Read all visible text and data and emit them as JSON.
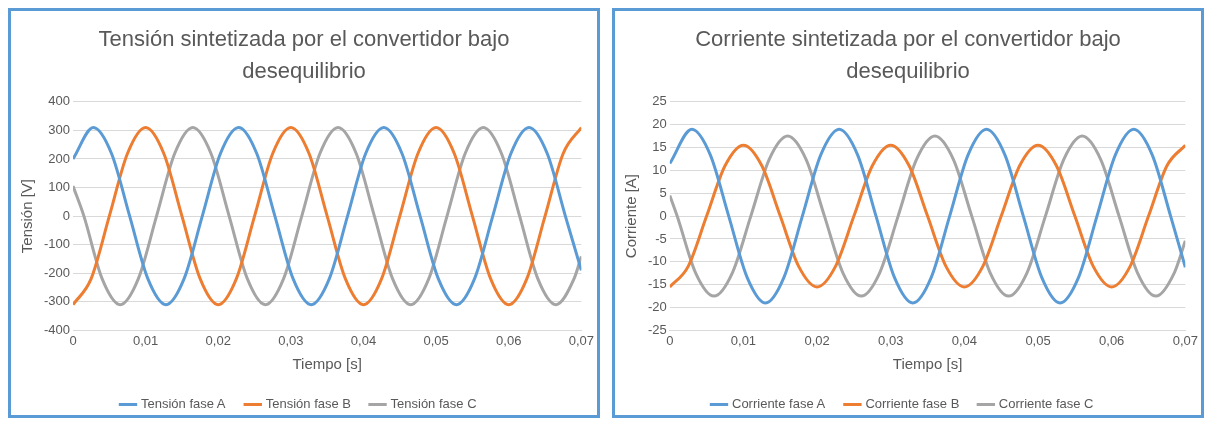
{
  "chart_data": [
    {
      "type": "line",
      "title": "Tensión sintetizada por el convertidor bajo desequilibrio",
      "xlabel": "Tiempo [s]",
      "ylabel": "Tensión [V]",
      "xlim": [
        0,
        0.07
      ],
      "xticks": [
        0,
        {
          "value": 0.01,
          "label": "0,01"
        },
        {
          "value": 0.02,
          "label": "0,02"
        },
        {
          "value": 0.03,
          "label": "0,03"
        },
        {
          "value": 0.04,
          "label": "0,04"
        },
        {
          "value": 0.05,
          "label": "0,05"
        },
        {
          "value": 0.06,
          "label": "0,06"
        },
        {
          "value": 0.07,
          "label": "0,07"
        }
      ],
      "ylim": [
        -400,
        400
      ],
      "yticks": [
        -400,
        -300,
        -200,
        -100,
        0,
        100,
        200,
        300,
        400
      ],
      "grid": "y",
      "legend": "bottom",
      "marker": "none",
      "line_style": "solid",
      "series": [
        {
          "name": "Tensión fase A",
          "color": "#5b9bd5",
          "x": [
            0,
            0.0028,
            0.0053,
            0.0078,
            0.0103,
            0.0128,
            0.0153,
            0.0178,
            0.0203,
            0.0228,
            0.0253,
            0.0278,
            0.0303,
            0.0328,
            0.0353,
            0.0378,
            0.0403,
            0.0428,
            0.0453,
            0.0478,
            0.0503,
            0.0528,
            0.0553,
            0.0578,
            0.0603,
            0.0628,
            0.0653,
            0.0678,
            0.07
          ],
          "values": [
            200,
            310,
            219,
            0,
            -219,
            -310,
            -219,
            0,
            219,
            310,
            219,
            0,
            -219,
            -310,
            -219,
            0,
            219,
            310,
            219,
            0,
            -219,
            -310,
            -219,
            0,
            219,
            310,
            219,
            0,
            -190
          ]
        },
        {
          "name": "Tensión fase B",
          "color": "#ed7d31",
          "x": [
            0,
            0.0025,
            0.005,
            0.0075,
            0.01,
            0.0125,
            0.015,
            0.0175,
            0.02,
            0.0225,
            0.025,
            0.0275,
            0.03,
            0.0325,
            0.035,
            0.0375,
            0.04,
            0.0425,
            0.045,
            0.0475,
            0.05,
            0.0525,
            0.055,
            0.0575,
            0.06,
            0.0625,
            0.065,
            0.0675,
            0.07
          ],
          "values": [
            -310,
            -219,
            0,
            219,
            310,
            219,
            0,
            -219,
            -310,
            -219,
            0,
            219,
            310,
            219,
            0,
            -219,
            -310,
            -219,
            0,
            219,
            310,
            219,
            0,
            -219,
            -310,
            -219,
            0,
            219,
            310
          ]
        },
        {
          "name": "Tensión fase C",
          "color": "#a5a5a5",
          "x": [
            0,
            0.0015,
            0.004,
            0.0065,
            0.009,
            0.0115,
            0.014,
            0.0165,
            0.019,
            0.0215,
            0.024,
            0.0265,
            0.029,
            0.0315,
            0.034,
            0.0365,
            0.039,
            0.0415,
            0.044,
            0.0465,
            0.049,
            0.0515,
            0.054,
            0.0565,
            0.059,
            0.0615,
            0.064,
            0.0665,
            0.069,
            0.07
          ],
          "values": [
            105,
            0,
            -219,
            -310,
            -219,
            0,
            219,
            310,
            219,
            0,
            -219,
            -310,
            -219,
            0,
            219,
            310,
            219,
            0,
            -219,
            -310,
            -219,
            0,
            219,
            310,
            219,
            0,
            -219,
            -310,
            -219,
            -141
          ]
        }
      ]
    },
    {
      "type": "line",
      "title": "Corriente sintetizada por el convertidor bajo desequilibrio",
      "xlabel": "Tiempo [s]",
      "ylabel": "Corriente [A]",
      "xlim": [
        0,
        0.07
      ],
      "xticks": [
        0,
        {
          "value": 0.01,
          "label": "0,01"
        },
        {
          "value": 0.02,
          "label": "0,02"
        },
        {
          "value": 0.03,
          "label": "0,03"
        },
        {
          "value": 0.04,
          "label": "0,04"
        },
        {
          "value": 0.05,
          "label": "0,05"
        },
        {
          "value": 0.06,
          "label": "0,06"
        },
        {
          "value": 0.07,
          "label": "0,07"
        }
      ],
      "ylim": [
        -25,
        25
      ],
      "yticks": [
        -25,
        -20,
        -15,
        -10,
        -5,
        0,
        5,
        10,
        15,
        20,
        25
      ],
      "grid": "y",
      "legend": "bottom",
      "marker": "none",
      "line_style": "solid",
      "series": [
        {
          "name": "Corriente fase A",
          "color": "#5b9bd5",
          "x": [
            0,
            0.003,
            0.0055,
            0.008,
            0.0105,
            0.013,
            0.0155,
            0.018,
            0.0205,
            0.023,
            0.0255,
            0.028,
            0.0305,
            0.033,
            0.0355,
            0.038,
            0.0405,
            0.043,
            0.0455,
            0.048,
            0.0505,
            0.053,
            0.0555,
            0.058,
            0.0605,
            0.063,
            0.0655,
            0.068,
            0.07
          ],
          "values": [
            11.5,
            19,
            13.4,
            0,
            -13.4,
            -19,
            -13.4,
            0,
            13.4,
            19,
            13.4,
            0,
            -13.4,
            -19,
            -13.4,
            0,
            13.4,
            19,
            13.4,
            0,
            -13.4,
            -19,
            -13.4,
            0,
            13.4,
            19,
            13.4,
            0,
            -11.2
          ]
        },
        {
          "name": "Corriente fase B",
          "color": "#ed7d31",
          "x": [
            0,
            0.0025,
            0.005,
            0.0075,
            0.01,
            0.0125,
            0.015,
            0.0175,
            0.02,
            0.0225,
            0.025,
            0.0275,
            0.03,
            0.0325,
            0.035,
            0.0375,
            0.04,
            0.0425,
            0.045,
            0.0475,
            0.05,
            0.0525,
            0.055,
            0.0575,
            0.06,
            0.0625,
            0.065,
            0.0675,
            0.07
          ],
          "values": [
            -15.5,
            -11,
            0,
            11,
            15.5,
            11,
            0,
            -11,
            -15.5,
            -11,
            0,
            11,
            15.5,
            11,
            0,
            -11,
            -15.5,
            -11,
            0,
            11,
            15.5,
            11,
            0,
            -11,
            -15.5,
            -11,
            0,
            11,
            15.5
          ]
        },
        {
          "name": "Corriente fase C",
          "color": "#a5a5a5",
          "x": [
            0,
            0.001,
            0.0035,
            0.006,
            0.0085,
            0.011,
            0.0135,
            0.016,
            0.0185,
            0.021,
            0.0235,
            0.026,
            0.0285,
            0.031,
            0.0335,
            0.036,
            0.0385,
            0.041,
            0.0435,
            0.046,
            0.0485,
            0.051,
            0.0535,
            0.056,
            0.0585,
            0.061,
            0.0635,
            0.066,
            0.0685,
            0.07
          ],
          "values": [
            4.5,
            0,
            -12.4,
            -17.5,
            -12.4,
            0,
            12.4,
            17.5,
            12.4,
            0,
            -12.4,
            -17.5,
            -12.4,
            0,
            12.4,
            17.5,
            12.4,
            0,
            -12.4,
            -17.5,
            -12.4,
            0,
            12.4,
            17.5,
            12.4,
            0,
            -12.4,
            -17.5,
            -12.4,
            -5.4
          ]
        }
      ]
    }
  ]
}
